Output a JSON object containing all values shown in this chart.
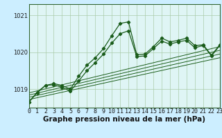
{
  "background_color": "#cceeff",
  "plot_bg_color": "#dff5f5",
  "line_color": "#1a5c1a",
  "grid_color": "#aaccaa",
  "xlabel": "Graphe pression niveau de la mer (hPa)",
  "xlabel_fontsize": 7.5,
  "xlim": [
    0,
    23
  ],
  "ylim": [
    1018.5,
    1021.3
  ],
  "yticks": [
    1019,
    1020,
    1021
  ],
  "xticks": [
    0,
    1,
    2,
    3,
    4,
    5,
    6,
    7,
    8,
    9,
    10,
    11,
    12,
    13,
    14,
    15,
    16,
    17,
    18,
    19,
    20,
    21,
    22,
    23
  ],
  "series_main": {
    "x": [
      0,
      1,
      2,
      3,
      4,
      5,
      6,
      7,
      8,
      9,
      10,
      11,
      12,
      13,
      14,
      15,
      16,
      17,
      18,
      19,
      20,
      21,
      22,
      23
    ],
    "y": [
      1018.65,
      1018.9,
      1019.1,
      1019.15,
      1019.1,
      1019.0,
      1019.35,
      1019.65,
      1019.85,
      1020.1,
      1020.45,
      1020.78,
      1020.82,
      1019.93,
      1019.95,
      1020.15,
      1020.38,
      1020.28,
      1020.32,
      1020.38,
      1020.18,
      1020.2,
      1019.92,
      1020.2
    ]
  },
  "series2": {
    "x": [
      0,
      1,
      2,
      3,
      4,
      5,
      6,
      7,
      8,
      9,
      10,
      11,
      12,
      13,
      14,
      15,
      16,
      17,
      18,
      19,
      20,
      21,
      22,
      23
    ],
    "y": [
      1018.65,
      1018.92,
      1019.1,
      1019.12,
      1019.05,
      1018.95,
      1019.22,
      1019.5,
      1019.72,
      1019.95,
      1020.25,
      1020.5,
      1020.58,
      1019.88,
      1019.9,
      1020.1,
      1020.3,
      1020.22,
      1020.28,
      1020.32,
      1020.12,
      1020.18,
      1019.9,
      1020.18
    ]
  },
  "trend_lines": [
    {
      "x": [
        0,
        23
      ],
      "y": [
        1018.72,
        1019.85
      ]
    },
    {
      "x": [
        0,
        23
      ],
      "y": [
        1018.78,
        1019.95
      ]
    },
    {
      "x": [
        0,
        23
      ],
      "y": [
        1018.84,
        1020.05
      ]
    },
    {
      "x": [
        0,
        23
      ],
      "y": [
        1018.9,
        1020.15
      ]
    }
  ],
  "tick_fontsize": 6,
  "tick_color": "#1a1a1a",
  "spine_color": "#336633"
}
